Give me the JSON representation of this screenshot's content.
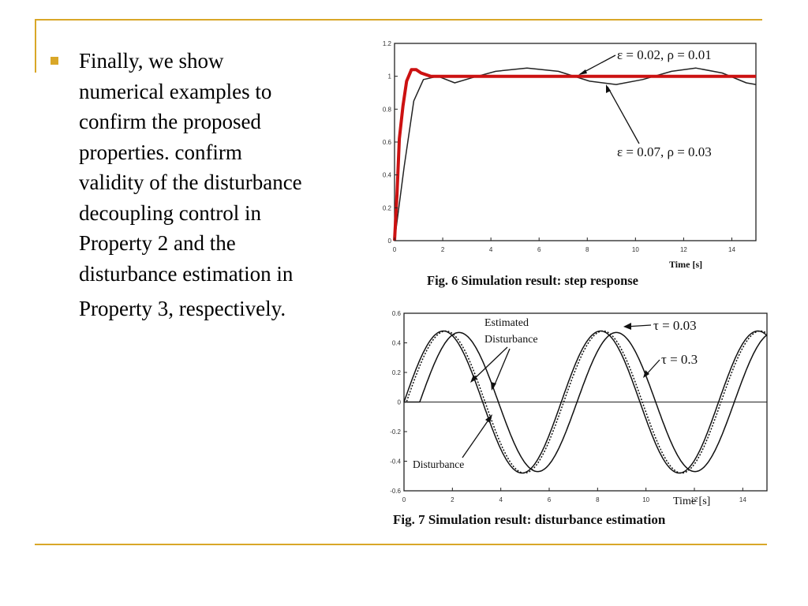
{
  "slide": {
    "bullet_lines": [
      "Finally, we show",
      "numerical examples to",
      "confirm the proposed",
      "properties. confirm",
      "validity of the disturbance",
      "decoupling control in",
      "Property 2 and the",
      "disturbance estimation in",
      "Property 3, respectively."
    ],
    "accent_color": "#d9a728"
  },
  "chart_data": [
    {
      "type": "line",
      "caption": "Fig. 6 Simulation result: step response",
      "xlabel": "Time [s]",
      "ylabel": "",
      "xlim": [
        0,
        15
      ],
      "ylim": [
        0,
        1.2
      ],
      "x_ticks": [
        "0",
        "2",
        "4",
        "6",
        "8",
        "10",
        "12",
        "14"
      ],
      "y_ticks": [
        "0",
        "0.2",
        "0.4",
        "0.6",
        "0.8",
        "1",
        "1.2"
      ],
      "annotations": [
        "ε = 0.02, ρ = 0.01",
        "ε = 0.07, ρ = 0.03"
      ],
      "series": [
        {
          "color": "#cc1111",
          "points": [
            [
              0,
              0
            ],
            [
              0.1,
              0.28
            ],
            [
              0.2,
              0.62
            ],
            [
              0.35,
              0.82
            ],
            [
              0.5,
              0.97
            ],
            [
              0.7,
              1.04
            ],
            [
              0.9,
              1.04
            ],
            [
              1.1,
              1.02
            ],
            [
              1.5,
              1.0
            ],
            [
              15,
              1.0
            ]
          ]
        },
        {
          "color": "#222222",
          "points": [
            [
              0,
              0
            ],
            [
              0.4,
              0.45
            ],
            [
              0.8,
              0.85
            ],
            [
              1.2,
              0.98
            ],
            [
              1.8,
              1.0
            ],
            [
              2.5,
              0.96
            ],
            [
              3.2,
              0.99
            ],
            [
              4.2,
              1.03
            ],
            [
              5.5,
              1.05
            ],
            [
              6.8,
              1.03
            ],
            [
              8.1,
              0.97
            ],
            [
              9.2,
              0.95
            ],
            [
              10.3,
              0.98
            ],
            [
              11.5,
              1.03
            ],
            [
              12.5,
              1.05
            ],
            [
              13.6,
              1.02
            ],
            [
              14.6,
              0.96
            ],
            [
              15,
              0.95
            ]
          ]
        }
      ]
    },
    {
      "type": "line",
      "caption": "Fig. 7 Simulation result: disturbance estimation",
      "xlabel": "Time [s]",
      "ylabel": "",
      "xlim": [
        0,
        15
      ],
      "ylim": [
        -0.6,
        0.6
      ],
      "x_ticks": [
        "0",
        "2",
        "4",
        "6",
        "8",
        "10",
        "12",
        "14"
      ],
      "y_ticks": [
        "-0.6",
        "-0.4",
        "-0.2",
        "0",
        "0.2",
        "0.4",
        "0.6"
      ],
      "annotations": [
        "Estimated",
        "Disturbance",
        "τ = 0.03",
        "τ = 0.3",
        "Disturbance"
      ],
      "series": [
        {
          "color": "#111111",
          "amplitude": 0.48,
          "period": 6.5,
          "phase_shift": 0.0
        },
        {
          "color": "#111111",
          "amplitude": 0.48,
          "period": 6.5,
          "phase_shift": 0.1
        },
        {
          "color": "#111111",
          "amplitude": 0.47,
          "period": 6.5,
          "phase_shift": 0.65
        }
      ]
    }
  ]
}
